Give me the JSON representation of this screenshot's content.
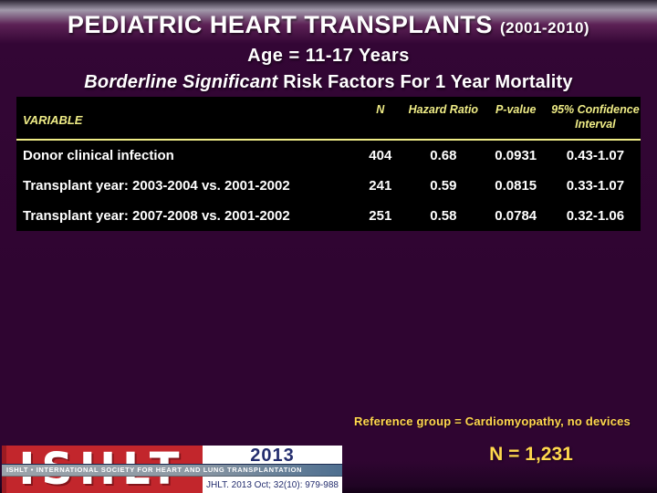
{
  "header": {
    "title": "PEDIATRIC HEART TRANSPLANTS",
    "title_years": "(2001-2010)",
    "age_line": "Age = 11-17 Years",
    "risk_line_emphasis": "Borderline Significant",
    "risk_line_rest": " Risk Factors For 1 Year Mortality"
  },
  "table": {
    "headers": {
      "variable": "VARIABLE",
      "n": "N",
      "hazard_ratio": "Hazard Ratio",
      "p_value": "P-value",
      "ci": "95% Confidence Interval"
    },
    "rows": [
      {
        "variable": "Donor clinical infection",
        "n": "404",
        "hazard_ratio": "0.68",
        "p_value": "0.0931",
        "ci": "0.43-1.07"
      },
      {
        "variable": "Transplant year: 2003-2004 vs. 2001-2002",
        "n": "241",
        "hazard_ratio": "0.59",
        "p_value": "0.0815",
        "ci": "0.33-1.07"
      },
      {
        "variable": "Transplant year: 2007-2008 vs. 2001-2002",
        "n": "251",
        "hazard_ratio": "0.58",
        "p_value": "0.0784",
        "ci": "0.32-1.06"
      }
    ]
  },
  "footer": {
    "reference_note": "Reference group = Cardiomyopathy, no devices",
    "n_total": "N = 1,231",
    "logo": {
      "acronym": "ISHLT",
      "year": "2013",
      "banner": "ISHLT • INTERNATIONAL SOCIETY FOR HEART AND LUNG TRANSPLANTATION",
      "citation": "JHLT. 2013 Oct; 32(10): 979-988"
    }
  },
  "colors": {
    "background_purple": "#2f0531",
    "table_background": "#000000",
    "table_header_yellow": "#efec86",
    "accent_gold": "#ffd84d",
    "title_white": "#ffffff",
    "logo_red": "#c2262c",
    "logo_navy": "#232d6e",
    "banner_steel_blue": "#4e6f90"
  }
}
